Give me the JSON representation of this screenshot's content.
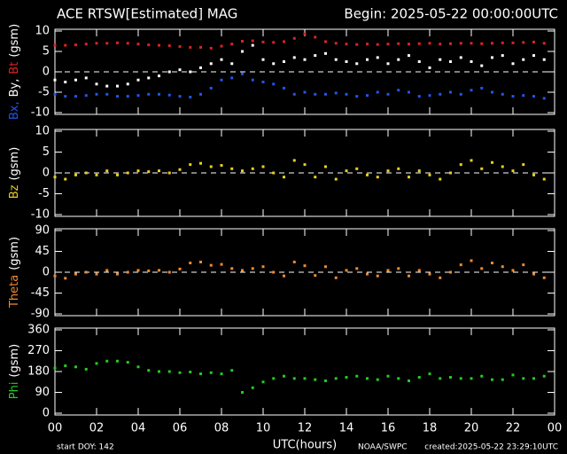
{
  "header": {
    "left": "ACE RTSW[Estimated] MAG",
    "right": "Begin: 2025-05-22 00:00:00UTC"
  },
  "footer": {
    "start": "start DOY:  142",
    "xlabel": "UTC(hours)",
    "source": "NOAA/SWPC",
    "created": "created:2025-05-22 23:29:10UTC"
  },
  "chart_data": [
    {
      "type": "scatter",
      "ylabel": [
        {
          "text": "Bx,",
          "color": "#2255ee"
        },
        {
          "text": "By,",
          "color": "#ffffff"
        },
        {
          "text": "Bt",
          "color": "#dd2222"
        },
        {
          "text": "(gsm)",
          "color": "#ffffff"
        }
      ],
      "ylim": [
        -10,
        10
      ],
      "yticks": [
        -10,
        -5,
        0,
        5,
        10
      ],
      "hline": 0,
      "x": [
        0,
        0.5,
        1,
        1.5,
        2,
        2.5,
        3,
        3.5,
        4,
        4.5,
        5,
        5.5,
        6,
        6.5,
        7,
        7.5,
        8,
        8.5,
        9,
        9.5,
        10,
        10.5,
        11,
        11.5,
        12,
        12.5,
        13,
        13.5,
        14,
        14.5,
        15,
        15.5,
        16,
        16.5,
        17,
        17.5,
        18,
        18.5,
        19,
        19.5,
        20,
        20.5,
        21,
        21.5,
        22,
        22.5,
        23,
        23.5
      ],
      "series": [
        {
          "color": "#dd2222",
          "values": [
            6.5,
            6.5,
            6.6,
            6.8,
            7,
            7,
            7.1,
            7,
            6.8,
            6.6,
            6.5,
            6.4,
            6.2,
            6,
            6,
            5.8,
            6.3,
            6.8,
            7.5,
            7.6,
            7.3,
            7.2,
            7.4,
            8.2,
            9.3,
            8.5,
            7.4,
            7,
            6.8,
            6.7,
            6.8,
            6.7,
            6.8,
            6.9,
            6.8,
            6.9,
            7,
            6.8,
            6.9,
            7,
            7,
            6.9,
            7,
            7.1,
            7.1,
            7.2,
            7.3,
            7
          ]
        },
        {
          "color": "#2255ee",
          "values": [
            -5.5,
            -6,
            -6,
            -5.8,
            -5.5,
            -5.5,
            -6,
            -6,
            -5.8,
            -5.5,
            -5.5,
            -5.7,
            -6,
            -6.2,
            -5.5,
            -4,
            -2,
            -1.5,
            -0.5,
            -2,
            -2.5,
            -3,
            -4,
            -5.5,
            -5,
            -5.5,
            -5.5,
            -5.2,
            -5.5,
            -6,
            -5.8,
            -5,
            -5.5,
            -4.5,
            -5,
            -6,
            -5.8,
            -5.5,
            -5,
            -5.5,
            -4.5,
            -4,
            -5,
            -5.5,
            -6,
            -5.8,
            -6,
            -6.5
          ]
        },
        {
          "color": "#ffffff",
          "values": [
            -2,
            -2.5,
            -2,
            -1.5,
            -3,
            -3.5,
            -3.5,
            -3,
            -2,
            -1.5,
            -1,
            0,
            0.5,
            0,
            1,
            2,
            3,
            2,
            5,
            6.5,
            3,
            2,
            2.5,
            3.5,
            3,
            4,
            4.5,
            3,
            2.5,
            2,
            3,
            3.5,
            2,
            3,
            4,
            2.5,
            1,
            3,
            2.5,
            3.5,
            2.5,
            1.5,
            3.5,
            4,
            2,
            3,
            4,
            3
          ]
        }
      ]
    },
    {
      "type": "scatter",
      "ylabel": [
        {
          "text": "Bz",
          "color": "#e8d020"
        },
        {
          "text": "(gsm)",
          "color": "#ffffff"
        }
      ],
      "ylim": [
        -10,
        10
      ],
      "yticks": [
        -10,
        -5,
        0,
        5,
        10
      ],
      "hline": 0,
      "x": [
        0,
        0.5,
        1,
        1.5,
        2,
        2.5,
        3,
        3.5,
        4,
        4.5,
        5,
        5.5,
        6,
        6.5,
        7,
        7.5,
        8,
        8.5,
        9,
        9.5,
        10,
        10.5,
        11,
        11.5,
        12,
        12.5,
        13,
        13.5,
        14,
        14.5,
        15,
        15.5,
        16,
        16.5,
        17,
        17.5,
        18,
        18.5,
        19,
        19.5,
        20,
        20.5,
        21,
        21.5,
        22,
        22.5,
        23,
        23.5
      ],
      "series": [
        {
          "color": "#e8d020",
          "values": [
            -1,
            -1.5,
            -0.5,
            0,
            -0.5,
            0.5,
            -0.5,
            0,
            0.5,
            0.3,
            0.5,
            0,
            0.8,
            2,
            2.3,
            1.5,
            1.8,
            1,
            0.5,
            1,
            1.5,
            0,
            -1,
            3,
            2,
            -1,
            1.5,
            -1.5,
            0.5,
            1,
            -0.5,
            -1,
            0.5,
            1,
            -1,
            0.5,
            -0.5,
            -1.5,
            0,
            2,
            3,
            1,
            2.5,
            1.5,
            0.5,
            2,
            -0.5,
            -1.5
          ]
        }
      ]
    },
    {
      "type": "scatter",
      "ylabel": [
        {
          "text": "Theta",
          "color": "#f08a30"
        },
        {
          "text": "(gsm)",
          "color": "#ffffff"
        }
      ],
      "ylim": [
        -90,
        90
      ],
      "yticks": [
        -90,
        -45,
        0,
        45,
        90
      ],
      "hline": 0,
      "x": [
        0,
        0.5,
        1,
        1.5,
        2,
        2.5,
        3,
        3.5,
        4,
        4.5,
        5,
        5.5,
        6,
        6.5,
        7,
        7.5,
        8,
        8.5,
        9,
        9.5,
        10,
        10.5,
        11,
        11.5,
        12,
        12.5,
        13,
        13.5,
        14,
        14.5,
        15,
        15.5,
        16,
        16.5,
        17,
        17.5,
        18,
        18.5,
        19,
        19.5,
        20,
        20.5,
        21,
        21.5,
        22,
        22.5,
        23,
        23.5
      ],
      "series": [
        {
          "color": "#f08a30",
          "values": [
            -8,
            -13,
            -4,
            0,
            -4,
            4,
            -4,
            0,
            4,
            3,
            4,
            0,
            7,
            20,
            22,
            15,
            17,
            8,
            4,
            8,
            12,
            0,
            -8,
            22,
            14,
            -7,
            12,
            -12,
            4,
            8,
            -4,
            -8,
            4,
            8,
            -8,
            4,
            -4,
            -12,
            0,
            16,
            25,
            8,
            20,
            12,
            4,
            16,
            -4,
            -12
          ]
        }
      ]
    },
    {
      "type": "scatter",
      "ylabel": [
        {
          "text": "Phi",
          "color": "#22cc22"
        },
        {
          "text": "(gsm)",
          "color": "#ffffff"
        }
      ],
      "ylim": [
        0,
        360
      ],
      "yticks": [
        0,
        90,
        180,
        270,
        360
      ],
      "xlim": [
        0,
        24
      ],
      "xticks": [
        {
          "value": 0,
          "label": "00"
        },
        {
          "value": 2,
          "label": "02"
        },
        {
          "value": 4,
          "label": "04"
        },
        {
          "value": 6,
          "label": "06"
        },
        {
          "value": 8,
          "label": "08"
        },
        10,
        12,
        14,
        16,
        18,
        20,
        22,
        {
          "value": 24,
          "label": "00"
        }
      ],
      "x": [
        0,
        0.5,
        1,
        1.5,
        2,
        2.5,
        3,
        3.5,
        4,
        4.5,
        5,
        5.5,
        6,
        6.5,
        7,
        7.5,
        8,
        8.5,
        9,
        9.5,
        10,
        10.5,
        11,
        11.5,
        12,
        12.5,
        13,
        13.5,
        14,
        14.5,
        15,
        15.5,
        16,
        16.5,
        17,
        17.5,
        18,
        18.5,
        19,
        19.5,
        20,
        20.5,
        21,
        21.5,
        22,
        22.5,
        23,
        23.5
      ],
      "series": [
        {
          "color": "#22cc22",
          "values": [
            195,
            205,
            200,
            190,
            215,
            225,
            225,
            220,
            200,
            185,
            180,
            180,
            175,
            178,
            170,
            175,
            170,
            185,
            90,
            110,
            135,
            150,
            160,
            150,
            150,
            145,
            140,
            150,
            155,
            160,
            150,
            145,
            160,
            150,
            140,
            155,
            170,
            150,
            155,
            150,
            150,
            160,
            145,
            145,
            165,
            150,
            150,
            160
          ]
        }
      ]
    }
  ]
}
